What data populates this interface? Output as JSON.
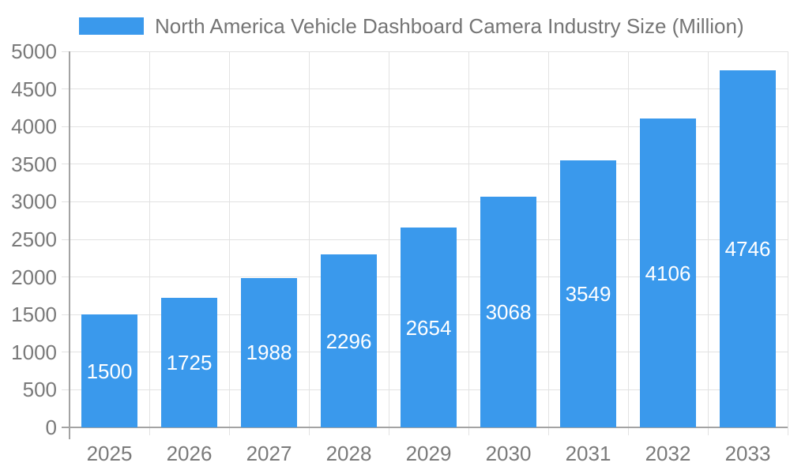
{
  "chart_data": {
    "type": "bar",
    "title": "North America Vehicle Dashboard Camera Industry Size (Million)",
    "series_name": "North America Vehicle Dashboard Camera Industry Size (Million)",
    "categories": [
      "2025",
      "2026",
      "2027",
      "2028",
      "2029",
      "2030",
      "2031",
      "2032",
      "2033"
    ],
    "values": [
      1500,
      1725,
      1988,
      2296,
      2654,
      3068,
      3549,
      4106,
      4746
    ],
    "value_labels": [
      "1500",
      "1725",
      "1988",
      "2296",
      "2654",
      "3068",
      "3549",
      "4106",
      "4746"
    ],
    "xlabel": "",
    "ylabel": "",
    "ylim": [
      0,
      5000
    ],
    "ytick_step": 500,
    "ytick_labels": [
      "0",
      "500",
      "1000",
      "1500",
      "2000",
      "2500",
      "3000",
      "3500",
      "4000",
      "4500",
      "5000"
    ],
    "grid": true,
    "legend_position": "top",
    "bar_color": "#3A99EC",
    "value_label_color": "#ffffff",
    "grid_color": "#e2e2e2",
    "axis_color": "#a3a3a3",
    "tick_label_color": "#7a7a7a",
    "background_color": "#ffffff"
  }
}
